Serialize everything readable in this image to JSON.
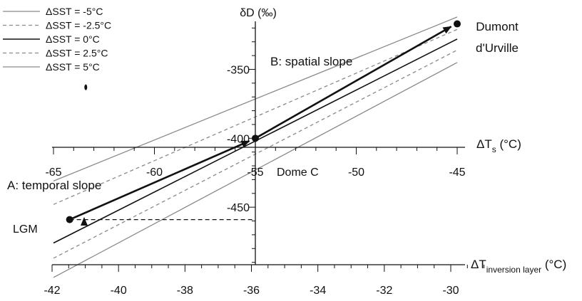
{
  "chart_data": {
    "type": "line",
    "primary_axis": {
      "label_base": "ΔT",
      "label_sub": "s",
      "label_unit": " (°C)",
      "range": [
        -65,
        -45
      ],
      "ticks": [
        -65,
        -60,
        -55,
        -50,
        -45
      ]
    },
    "secondary_axis": {
      "label_base": "ΔT",
      "label_sub": "inversion layer",
      "label_unit": " (°C)",
      "range": [
        -42,
        -29
      ],
      "ticks": [
        -42,
        -40,
        -38,
        -36,
        -34,
        -32,
        -30
      ]
    },
    "y_axis": {
      "label": "δD (‰)",
      "range": [
        -500,
        -310
      ],
      "ticks": [
        -350,
        -400,
        -450
      ]
    },
    "series": [
      {
        "name": "ΔSST = -5°C",
        "style": "solid-gray",
        "x": [
          -65,
          -45
        ],
        "y": [
          -431,
          -312
        ]
      },
      {
        "name": "ΔSST = -2.5°C",
        "style": "dashed-gray",
        "x": [
          -65,
          -45
        ],
        "y": [
          -448,
          -321
        ]
      },
      {
        "name": "ΔSST = 0°C",
        "style": "solid-black",
        "x": [
          -65,
          -45
        ],
        "y": [
          -476,
          -328
        ]
      },
      {
        "name": "ΔSST = 2.5°C",
        "style": "dashed-gray",
        "x": [
          -65,
          -45
        ],
        "y": [
          -487,
          -336
        ]
      },
      {
        "name": "ΔSST = 5°C",
        "style": "solid-gray",
        "x": [
          -65,
          -45
        ],
        "y": [
          -501,
          -345
        ]
      }
    ],
    "points": [
      {
        "name": "LGM",
        "x": -64.2,
        "y": -459
      },
      {
        "name": "Dome C",
        "x": -55,
        "y": -400
      },
      {
        "name": "Dumont d'Urville",
        "x": -45,
        "y": -317
      },
      {
        "name": "",
        "x": -63.4,
        "y": -363
      }
    ],
    "arrows": [
      {
        "label": "A: temporal slope",
        "from": [
          -64.2,
          -459
        ],
        "to": [
          -55.3,
          -402
        ]
      },
      {
        "label": "B: spatial slope",
        "from": [
          -55,
          -400
        ],
        "to": [
          -45.3,
          -319
        ]
      }
    ],
    "annotations": {
      "dome_c": "Dome C",
      "dumont_line1": "Dumont",
      "dumont_line2": "d'Urville",
      "lgm": "LGM",
      "temporal": "A: temporal slope",
      "spatial": "B: spatial slope"
    },
    "lgm_reference": {
      "x_from": -64.2,
      "x_to": -55,
      "y": -459
    },
    "legend_position": "top-left",
    "grid": false
  }
}
